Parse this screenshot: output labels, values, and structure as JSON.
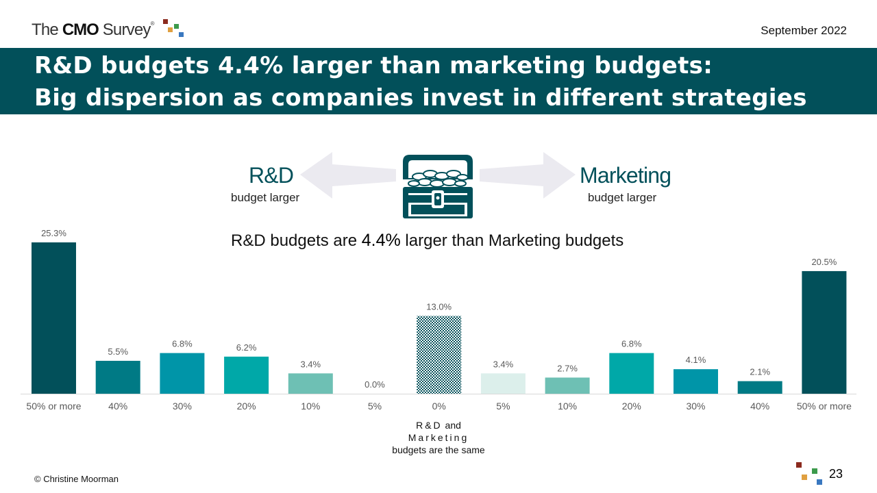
{
  "header": {
    "logo_pre": "The",
    "logo_bold": "CMO",
    "logo_post": "Survey",
    "logo_mark": "®",
    "date": "September 2022"
  },
  "banner": {
    "line1": "R&D budgets 4.4% larger than marketing budgets:",
    "line2": "Big dispersion as companies invest in different strategies"
  },
  "legend": {
    "left_title": "R&D",
    "left_sub": "budget larger",
    "right_title": "Marketing",
    "right_sub": "budget larger",
    "icon": "treasure-chest-icon"
  },
  "subtitle": {
    "pre": "R&D budgets are ",
    "value": "4.4%",
    "post": " larger than Marketing budgets"
  },
  "center_note": {
    "line1_a": "R&D",
    "line1_b": " and",
    "line2": "Marketing",
    "line3": "budgets are the same"
  },
  "footer": {
    "copyright": "© Christine Moorman",
    "page_number": "23"
  },
  "colors": {
    "banner": "#02505a",
    "dark_teal": "#02505a",
    "teal": "#007a85",
    "blue_teal": "#0095a8",
    "aqua": "#00a8a8",
    "mint": "#6ec0b4",
    "pale_mint": "#dcefeb",
    "arrow_gray": "#ebeaf0",
    "logo_red": "#8b2a1e",
    "logo_orange": "#e0a040",
    "logo_green": "#3c9a4c",
    "logo_blue": "#3a78c0"
  },
  "chart_data": {
    "type": "bar",
    "categories": [
      "50% or more",
      "40%",
      "30%",
      "20%",
      "10%",
      "5%",
      "0%",
      "5%",
      "10%",
      "20%",
      "30%",
      "40%",
      "50% or more"
    ],
    "values": [
      25.3,
      5.5,
      6.8,
      6.2,
      3.4,
      0.0,
      13.0,
      3.4,
      2.7,
      6.8,
      4.1,
      2.1,
      20.5
    ],
    "value_labels": [
      "25.3%",
      "5.5%",
      "6.8%",
      "6.2%",
      "3.4%",
      "0.0%",
      "13.0%",
      "3.4%",
      "2.7%",
      "6.8%",
      "4.1%",
      "2.1%",
      "20.5%"
    ],
    "bar_colors": [
      "#02505a",
      "#007a85",
      "#0095a8",
      "#00a8a8",
      "#6ec0b4",
      "#dcefeb",
      "pattern",
      "#dcefeb",
      "#6ec0b4",
      "#00a8a8",
      "#0095a8",
      "#007a85",
      "#02505a"
    ],
    "ylim": [
      0,
      25.3
    ],
    "grid": false,
    "xlabel": "",
    "ylabel": ""
  }
}
